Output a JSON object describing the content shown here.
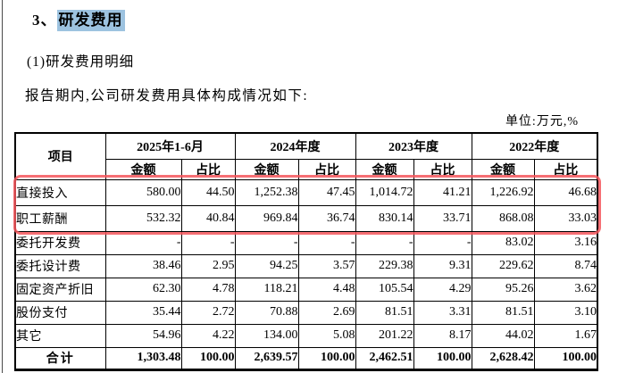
{
  "colors": {
    "title_highlight": "#9dc3e0",
    "annotation_red": "#f4565c",
    "text": "#000000"
  },
  "heading": {
    "section_prefix": "3、",
    "section_title": "研发费用",
    "subsection_title": "(1)研发费用明细",
    "intro_text": "报告期内,公司研发费用具体构成情况如下:",
    "unit_note": "单位:万元,%"
  },
  "table": {
    "item_header": "项目",
    "amount_label": "金额",
    "ratio_label": "占比",
    "period_headers": [
      "2025年1-6月",
      "2024年度",
      "2023年度",
      "2022年度"
    ],
    "rows": [
      {
        "name": "直接投入",
        "values": [
          "580.00",
          "44.50",
          "1,252.38",
          "47.45",
          "1,014.72",
          "41.21",
          "1,226.92",
          "46.68"
        ]
      },
      {
        "name": "职工薪酬",
        "values": [
          "532.32",
          "40.84",
          "969.84",
          "36.74",
          "830.14",
          "33.71",
          "868.08",
          "33.03"
        ]
      },
      {
        "name": "委托开发费",
        "values": [
          "-",
          "-",
          "-",
          "-",
          "-",
          "-",
          "83.02",
          "3.16"
        ]
      },
      {
        "name": "委托设计费",
        "values": [
          "38.46",
          "2.95",
          "94.25",
          "3.57",
          "229.38",
          "9.31",
          "229.62",
          "8.74"
        ]
      },
      {
        "name": "固定资产折旧",
        "values": [
          "62.30",
          "4.78",
          "118.21",
          "4.48",
          "105.54",
          "4.29",
          "95.26",
          "3.62"
        ]
      },
      {
        "name": "股份支付",
        "values": [
          "35.44",
          "2.72",
          "70.88",
          "2.69",
          "81.51",
          "3.31",
          "81.51",
          "3.10"
        ]
      },
      {
        "name": "其它",
        "values": [
          "54.96",
          "4.22",
          "134.00",
          "5.08",
          "201.22",
          "8.17",
          "44.02",
          "1.67"
        ]
      }
    ],
    "total_row": {
      "name": "合计",
      "values": [
        "1,303.48",
        "100.00",
        "2,639.57",
        "100.00",
        "2,462.51",
        "100.00",
        "2,628.42",
        "100.00"
      ]
    }
  },
  "annotation": {
    "type": "red-highlight-box",
    "rows_covered": [
      "直接投入",
      "职工薪酬"
    ]
  }
}
